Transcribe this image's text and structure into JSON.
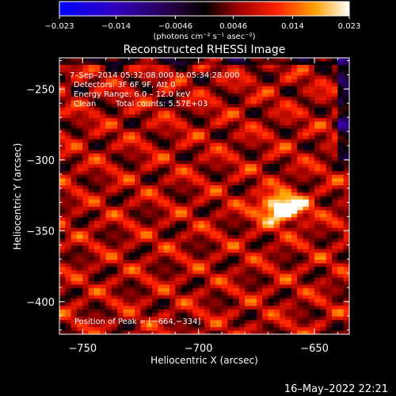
{
  "chart_data": {
    "type": "heatmap",
    "title": "Reconstructed RHESSI Image",
    "xlabel": "Heliocentric X (arcsec)",
    "ylabel": "Heliocentric Y (arcsec)",
    "xlim": [
      -760,
      -635
    ],
    "ylim": [
      -423,
      -228
    ],
    "x_ticks": [
      -750,
      -700,
      -650,
      -600
    ],
    "y_ticks": [
      -250,
      -300,
      -350,
      -400
    ],
    "colorbar": {
      "range": [
        -0.023,
        0.023
      ],
      "ticks": [
        -0.023,
        -0.014,
        -0.0046,
        0.0046,
        0.014,
        0.023
      ],
      "tick_labels": [
        "−0.023",
        "−0.014",
        "−0.0046",
        "0.0046",
        "0.014",
        "0.023"
      ],
      "label": "(photons cm⁻² s⁻¹ asec⁻²)"
    },
    "info": {
      "time": "7–Sep–2014 05:32:08.000 to 05:34:28.000",
      "detectors": "Detectors: 3F 6F 9F, Att 0",
      "energy": "Energy Range: 6.0 – 12.0 keV",
      "clean_label": "Clean",
      "counts": "Total counts: 5.57E+03",
      "peak": "Position of Peak = [−664,−334]"
    },
    "peak": [
      -664,
      -334
    ],
    "date_stamp": "16–May–2022 22:21",
    "colors": {
      "background": "#000000",
      "colormap": [
        "#0000ff",
        "#000000",
        "#ff0000",
        "#ffa000",
        "#ffffff"
      ]
    }
  }
}
